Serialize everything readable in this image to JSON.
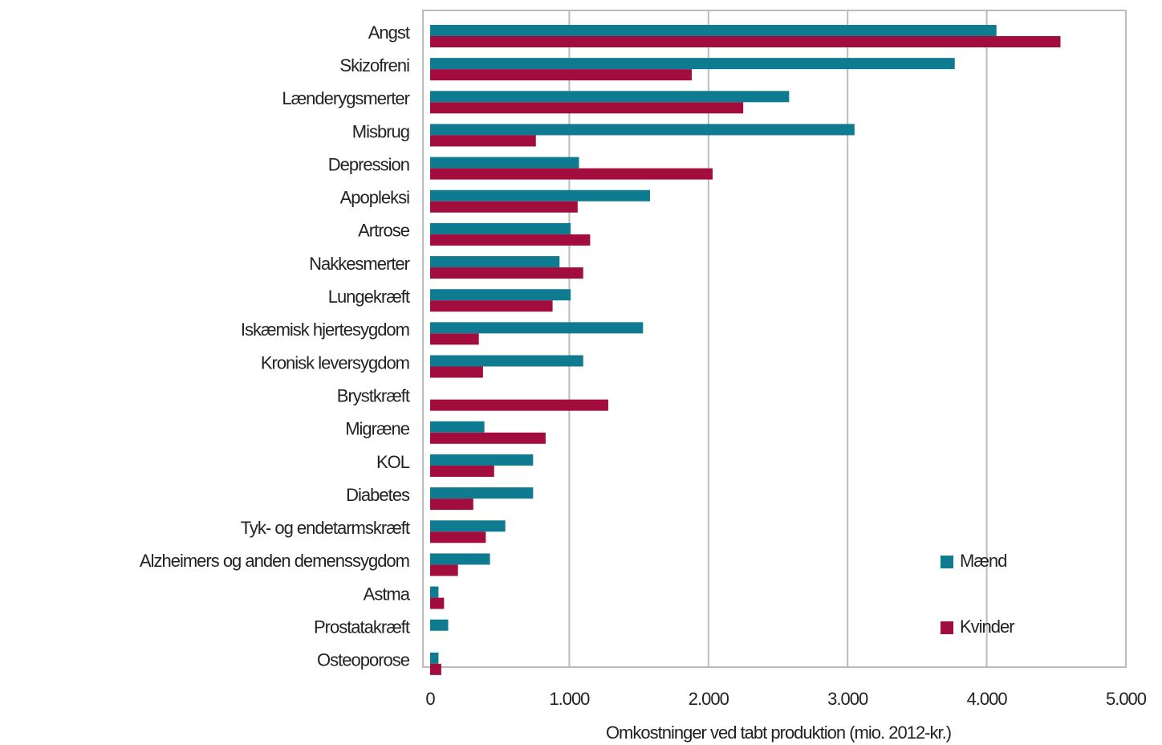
{
  "chart_data": {
    "type": "barh",
    "xlabel": "Omkostninger ved tabt produktion (mio. 2012-kr.)",
    "categories": [
      "Angst",
      "Skizofreni",
      "Lænderygsmerter",
      "Misbrug",
      "Depression",
      "Apopleksi",
      "Artrose",
      "Nakkesmerter",
      "Lungekræft",
      "Iskæmisk hjertesygdom",
      "Kronisk leversygdom",
      "Brystkræft",
      "Migræne",
      "KOL",
      "Diabetes",
      "Tyk- og endetarmskræft",
      "Alzheimers og anden demenssygdom",
      "Astma",
      "Prostatakræft",
      "Osteoporose"
    ],
    "series": [
      {
        "name": "Mænd",
        "color": "#0f7b90",
        "values": [
          4070,
          3770,
          2580,
          3050,
          1070,
          1580,
          1010,
          930,
          1010,
          1530,
          1100,
          0,
          390,
          740,
          740,
          540,
          430,
          60,
          130,
          60
        ]
      },
      {
        "name": "Kvinder",
        "color": "#a30d3e",
        "values": [
          4530,
          1880,
          2250,
          760,
          2030,
          1060,
          1150,
          1100,
          880,
          350,
          380,
          1280,
          830,
          460,
          310,
          400,
          200,
          100,
          0,
          80
        ]
      }
    ],
    "xlim": [
      0,
      5000
    ],
    "xticks": [
      0,
      {
        "value": 1000,
        "label": "1.000"
      },
      {
        "value": 2000,
        "label": "2.000"
      },
      {
        "value": 3000,
        "label": "3.000"
      },
      {
        "value": 4000,
        "label": "4.000"
      },
      {
        "value": 5000,
        "label": "5.000"
      }
    ],
    "grid": true,
    "legend": "lower right"
  }
}
